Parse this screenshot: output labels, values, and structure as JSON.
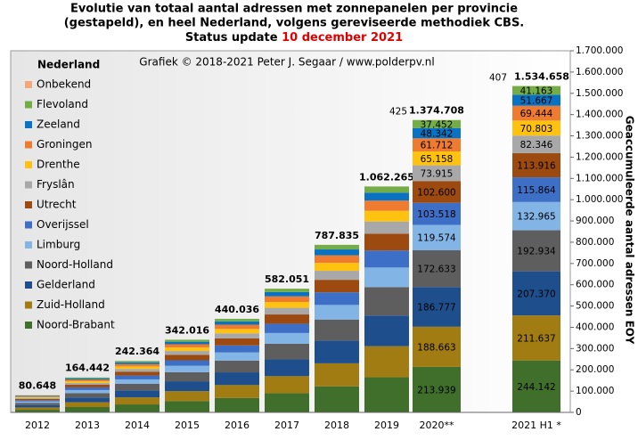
{
  "chart_data": {
    "type": "stacked_bar",
    "title": [
      "Evolutie van totaal aantal adressen met zonnepanelen per provincie",
      "(gestapeld), en heel Nederland, volgens gereviseerde methodiek CBS."
    ],
    "status": "Status update",
    "date": "10 december 2021",
    "credit": "Grafiek © 2018-2021 Peter J. Segaar / www.polderpv.nl",
    "legend_title": "Nederland",
    "y_label": "Geaccumuleerde aantal adressen EOY",
    "categories": [
      "2012",
      "2013",
      "2014",
      "2015",
      "2016",
      "2017",
      "2018",
      "2019",
      "2020**",
      "2021 H1 *"
    ],
    "series": [
      {
        "name": "Noord-Brabant",
        "color": "#3f6f2a",
        "values": [
          12248,
          25142,
          37464,
          52716,
          68036,
          90451,
          122435,
          165165,
          213939,
          244142
        ],
        "value_labels": [
          null,
          null,
          null,
          null,
          null,
          null,
          null,
          null,
          "213.939",
          "244.142"
        ]
      },
      {
        "name": "Zuid-Holland",
        "color": "#a07c12",
        "values": [
          11100,
          22600,
          33300,
          47000,
          60400,
          79900,
          108200,
          145800,
          188663,
          211637
        ],
        "value_labels": [
          null,
          null,
          null,
          null,
          null,
          null,
          null,
          null,
          "188.663",
          "211.637"
        ]
      },
      {
        "name": "Gelderland",
        "color": "#1f4e8c",
        "values": [
          11000,
          22300,
          32900,
          46500,
          59800,
          79100,
          107100,
          144400,
          186777,
          207370
        ],
        "value_labels": [
          null,
          null,
          null,
          null,
          null,
          null,
          null,
          null,
          "186.777",
          "207.370"
        ]
      },
      {
        "name": "Noord-Holland",
        "color": "#5e5e5e",
        "values": [
          10100,
          20700,
          30400,
          43000,
          55300,
          73100,
          98900,
          133400,
          172633,
          192934
        ],
        "value_labels": [
          null,
          null,
          null,
          null,
          null,
          null,
          null,
          null,
          "172.633",
          "192.934"
        ]
      },
      {
        "name": "Limburg",
        "color": "#82b4e6",
        "values": [
          7000,
          14300,
          21100,
          29800,
          38300,
          50600,
          68500,
          92400,
          119574,
          132965
        ],
        "value_labels": [
          null,
          null,
          null,
          null,
          null,
          null,
          null,
          null,
          "119.574",
          "132.965"
        ]
      },
      {
        "name": "Overijssel",
        "color": "#3e6fc6",
        "values": [
          6100,
          12400,
          18200,
          25800,
          33100,
          43800,
          59300,
          80000,
          103518,
          115864
        ],
        "value_labels": [
          null,
          null,
          null,
          null,
          null,
          null,
          null,
          null,
          "103.518",
          "115.864"
        ]
      },
      {
        "name": "Utrecht",
        "color": "#9c4a10",
        "values": [
          6000,
          12300,
          18100,
          25500,
          32800,
          43400,
          58800,
          79200,
          102600,
          113916
        ],
        "value_labels": [
          null,
          null,
          null,
          null,
          null,
          null,
          null,
          null,
          "102.600",
          "113.916"
        ]
      },
      {
        "name": "Fryslân",
        "color": "#a8a8a8",
        "values": [
          4300,
          8800,
          13000,
          18400,
          23700,
          31300,
          42400,
          57100,
          73915,
          82346
        ],
        "value_labels": [
          null,
          null,
          null,
          null,
          null,
          null,
          null,
          null,
          "73.915",
          "82.346"
        ]
      },
      {
        "name": "Drenthe",
        "color": "#ffc20e",
        "values": [
          3800,
          7800,
          11500,
          16200,
          20900,
          27600,
          37300,
          50400,
          65158,
          70803
        ],
        "value_labels": [
          null,
          null,
          null,
          null,
          null,
          null,
          null,
          null,
          "65.158",
          "70.803"
        ]
      },
      {
        "name": "Groningen",
        "color": "#ee7b30",
        "values": [
          3600,
          7400,
          10900,
          15400,
          19800,
          26100,
          35400,
          47700,
          61712,
          69444
        ],
        "value_labels": [
          null,
          null,
          null,
          null,
          null,
          null,
          null,
          null,
          "61.712",
          "69.444"
        ]
      },
      {
        "name": "Zeeland",
        "color": "#0a72c2",
        "values": [
          2800,
          5800,
          8500,
          12000,
          15500,
          20500,
          27700,
          37400,
          48342,
          51667
        ],
        "value_labels": [
          null,
          null,
          null,
          null,
          null,
          null,
          null,
          null,
          "48.342",
          "51.667"
        ]
      },
      {
        "name": "Flevoland",
        "color": "#72ad48",
        "values": [
          2200,
          4500,
          6600,
          9300,
          12000,
          15800,
          21400,
          28900,
          37452,
          41163
        ],
        "value_labels": [
          null,
          null,
          null,
          null,
          null,
          null,
          null,
          null,
          "37.452",
          "41.163"
        ]
      },
      {
        "name": "Onbekend",
        "color": "#f4a77a",
        "values": [
          400,
          400,
          400,
          400,
          400,
          400,
          400,
          400,
          425,
          407
        ]
      }
    ],
    "totals": {
      "values": [
        80648,
        164442,
        242364,
        342016,
        440036,
        582051,
        787835,
        1062265,
        1374708,
        1534658
      ],
      "value_labels": [
        "80.648",
        "164.442",
        "242.364",
        "342.016",
        "440.036",
        "582.051",
        "787.835",
        "1.062.265",
        "1.374.708",
        "1.534.658"
      ]
    },
    "ylim": [
      0,
      1700000
    ],
    "yticks": [
      0,
      {
        "value": 100000,
        "label": "100.000"
      },
      {
        "value": 200000,
        "label": "200.000"
      },
      {
        "value": 300000,
        "label": "300.000"
      },
      {
        "value": 400000,
        "label": "400.000"
      },
      {
        "value": 500000,
        "label": "500.000"
      },
      {
        "value": 600000,
        "label": "600.000"
      },
      {
        "value": 700000,
        "label": "700.000"
      },
      {
        "value": 800000,
        "label": "800.000"
      },
      {
        "value": 900000,
        "label": "900.000"
      },
      {
        "value": 1000000,
        "label": "1.000.000"
      },
      {
        "value": 1100000,
        "label": "1.100.000"
      },
      {
        "value": 1200000,
        "label": "1.200.000"
      },
      {
        "value": 1300000,
        "label": "1.300.000"
      },
      {
        "value": 1400000,
        "label": "1.400.000"
      },
      {
        "value": 1500000,
        "label": "1.500.000"
      },
      {
        "value": 1600000,
        "label": "1.600.000"
      },
      {
        "value": 1700000,
        "label": "1.700.000"
      }
    ],
    "legend": "left",
    "axis_side": "right"
  }
}
